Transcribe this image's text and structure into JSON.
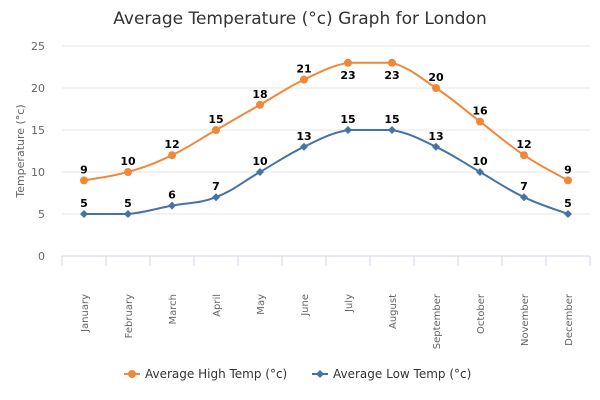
{
  "chart_data": {
    "type": "line",
    "title": "Average Temperature (°c) Graph for London",
    "xlabel": "",
    "ylabel": "Temperature (°c)",
    "ylim": [
      0,
      25
    ],
    "y_ticks": [
      0,
      5,
      10,
      15,
      20,
      25
    ],
    "grid": true,
    "legend_position": "bottom-center",
    "categories": [
      "January",
      "February",
      "March",
      "April",
      "May",
      "June",
      "July",
      "August",
      "September",
      "October",
      "November",
      "December"
    ],
    "series": [
      {
        "name": "Average High Temp (°c)",
        "color": "#f0883a",
        "marker": "circle",
        "values": [
          9,
          10,
          12,
          15,
          18,
          21,
          23,
          23,
          20,
          16,
          12,
          9
        ]
      },
      {
        "name": "Average Low Temp (°c)",
        "color": "#4572a7",
        "marker": "diamond",
        "values": [
          5,
          5,
          6,
          7,
          10,
          13,
          15,
          15,
          13,
          10,
          7,
          5
        ]
      }
    ]
  }
}
